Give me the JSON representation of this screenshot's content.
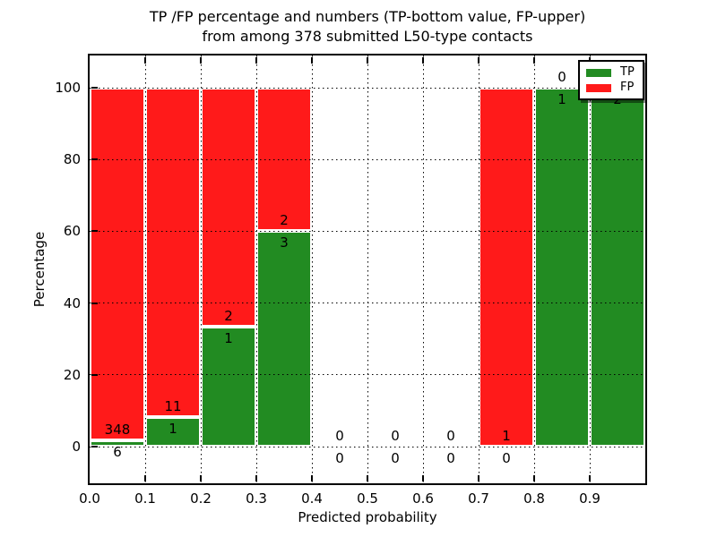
{
  "title": {
    "line1": "TP /FP percentage and numbers (TP-bottom value, FP-upper)",
    "line2": "from among 378 submitted L50-type contacts"
  },
  "axes": {
    "xlabel": "Predicted probability",
    "ylabel": "Percentage",
    "x_tick_labels": [
      "0.0",
      "0.1",
      "0.2",
      "0.3",
      "0.4",
      "0.5",
      "0.6",
      "0.7",
      "0.8",
      "0.9"
    ],
    "y_tick_labels": [
      "0",
      "20",
      "40",
      "60",
      "80",
      "100"
    ],
    "y_tick_values": [
      0,
      20,
      40,
      60,
      80,
      100
    ],
    "xlim": [
      0.0,
      1.0
    ],
    "ylim": [
      -10,
      109
    ],
    "grid": "dotted"
  },
  "legend": {
    "position": "upper right",
    "items": [
      {
        "label": "TP",
        "color": "#228B22"
      },
      {
        "label": "FP",
        "color": "#ff1a1a"
      }
    ]
  },
  "colors": {
    "tp": "#228B22",
    "fp": "#ff1a1a",
    "bar_edge": "#ffffff",
    "grid": "#000000",
    "text": "#000000",
    "background": "#ffffff"
  },
  "chart_data": {
    "type": "bar",
    "stacked": true,
    "bin_width": 0.1,
    "total_contacts": 378,
    "annotation_rule": "TP count below green/red boundary, FP count above it",
    "bins": [
      {
        "x_start": 0.0,
        "x_end": 0.1,
        "tp": 6,
        "fp": 348,
        "tp_pct": 1.7,
        "fp_pct": 98.3
      },
      {
        "x_start": 0.1,
        "x_end": 0.2,
        "tp": 1,
        "fp": 11,
        "tp_pct": 8.3,
        "fp_pct": 91.7
      },
      {
        "x_start": 0.2,
        "x_end": 0.3,
        "tp": 1,
        "fp": 2,
        "tp_pct": 33.3,
        "fp_pct": 66.7
      },
      {
        "x_start": 0.3,
        "x_end": 0.4,
        "tp": 3,
        "fp": 2,
        "tp_pct": 60.0,
        "fp_pct": 40.0
      },
      {
        "x_start": 0.4,
        "x_end": 0.5,
        "tp": 0,
        "fp": 0,
        "tp_pct": 0,
        "fp_pct": 0
      },
      {
        "x_start": 0.5,
        "x_end": 0.6,
        "tp": 0,
        "fp": 0,
        "tp_pct": 0,
        "fp_pct": 0
      },
      {
        "x_start": 0.6,
        "x_end": 0.7,
        "tp": 0,
        "fp": 0,
        "tp_pct": 0,
        "fp_pct": 0
      },
      {
        "x_start": 0.7,
        "x_end": 0.8,
        "tp": 0,
        "fp": 1,
        "tp_pct": 0,
        "fp_pct": 100
      },
      {
        "x_start": 0.8,
        "x_end": 0.9,
        "tp": 1,
        "fp": 0,
        "tp_pct": 100,
        "fp_pct": 0
      },
      {
        "x_start": 0.9,
        "x_end": 1.0,
        "tp": 2,
        "fp": 0,
        "tp_pct": 100,
        "fp_pct": 0
      }
    ]
  }
}
